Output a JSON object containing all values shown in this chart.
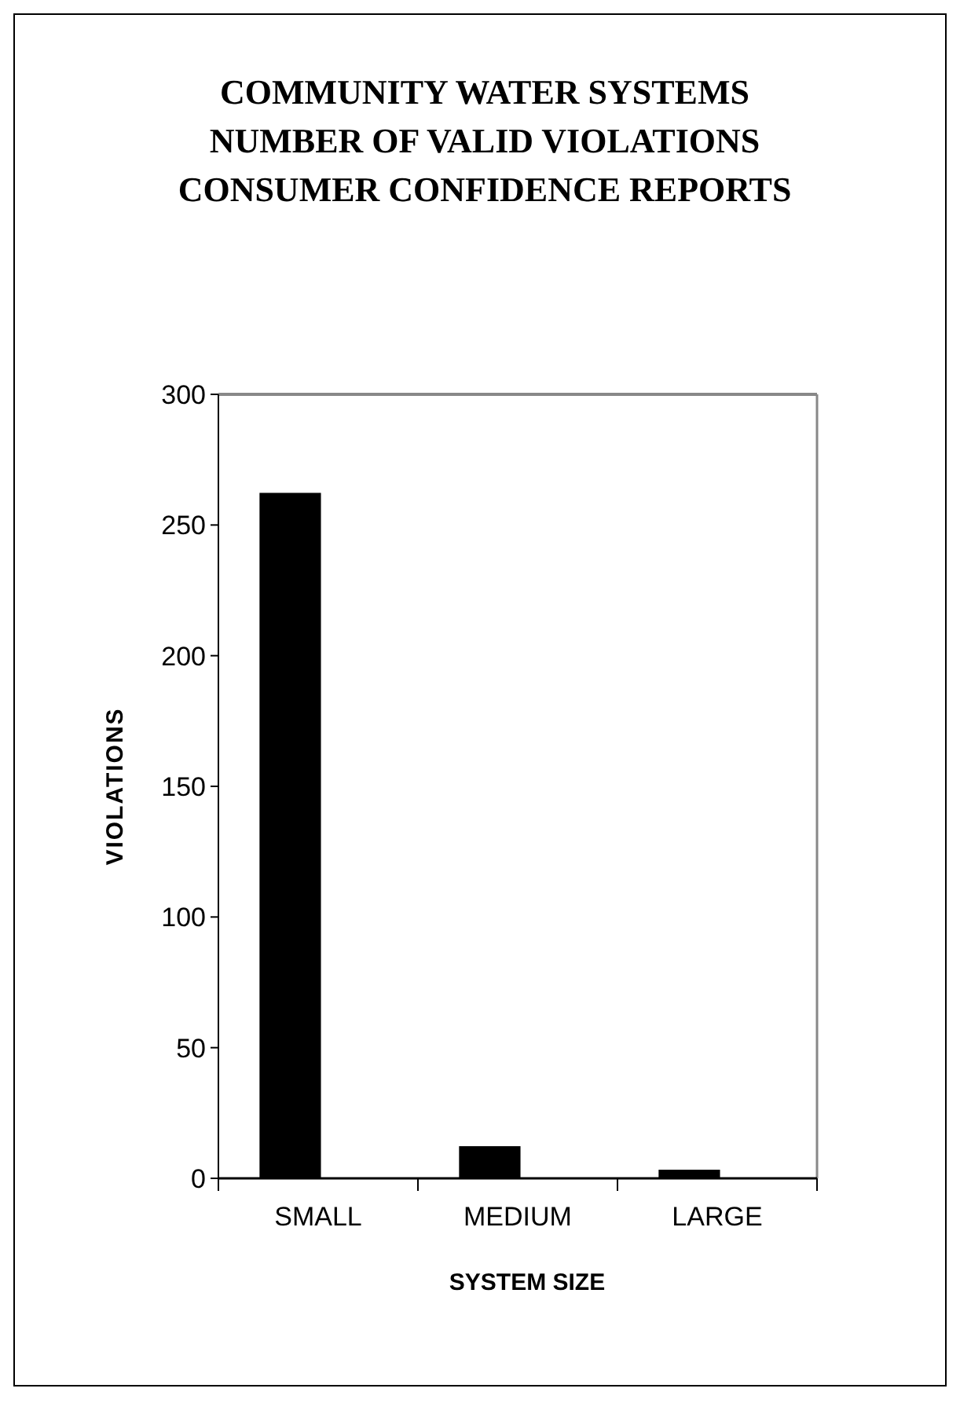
{
  "chart_data": {
    "type": "bar",
    "title": "COMMUNITY WATER SYSTEMS\nNUMBER OF VALID VIOLATIONS\nCONSUMER CONFIDENCE REPORTS",
    "xlabel": "SYSTEM SIZE",
    "ylabel": "VIOLATIONS",
    "categories": [
      "SMALL",
      "MEDIUM",
      "LARGE"
    ],
    "values": [
      262,
      12,
      3
    ],
    "color": "#000000",
    "ylim": [
      0,
      300
    ],
    "yticks": [
      0,
      50,
      100,
      150,
      200,
      250,
      300
    ],
    "grid": false
  }
}
